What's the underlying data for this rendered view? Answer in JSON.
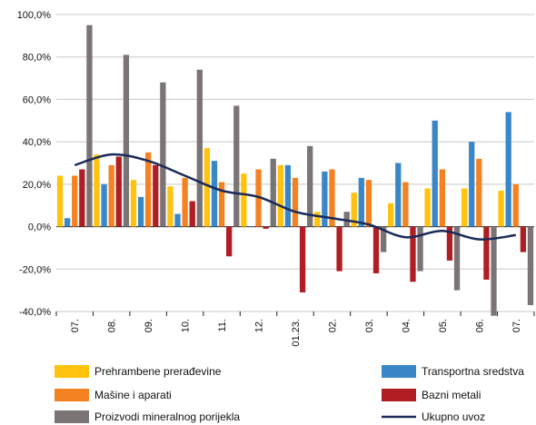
{
  "chart_data": {
    "type": "bar",
    "categories": [
      "07.",
      "08.",
      "09.",
      "10.",
      "11.",
      "12.",
      "01.23.",
      "02.",
      "03.",
      "04.",
      "05.",
      "06.",
      "07."
    ],
    "y_ticks": [
      "100,0%",
      "80,0%",
      "60,0%",
      "40,0%",
      "20,0%",
      "0,0%",
      "-20,0%",
      "-40,0%"
    ],
    "ylim": [
      -40,
      100
    ],
    "grid": "horizontal",
    "legend_position": "bottom",
    "series": [
      {
        "name": "Prehrambene prerađevine",
        "type": "bar",
        "color": "#FFC20E",
        "values": [
          24,
          34,
          22,
          19,
          37,
          25,
          29,
          7,
          16,
          11,
          18,
          18,
          17
        ]
      },
      {
        "name": "Transportna sredstva",
        "type": "bar",
        "color": "#3A87C8",
        "values": [
          4,
          20,
          14,
          6,
          31,
          0,
          29,
          26,
          23,
          30,
          50,
          40,
          54
        ]
      },
      {
        "name": "Mašine i aparati",
        "type": "bar",
        "color": "#F58220",
        "values": [
          24,
          29,
          35,
          23,
          21,
          27,
          23,
          27,
          22,
          21,
          27,
          32,
          20
        ]
      },
      {
        "name": "Bazni metali",
        "type": "bar",
        "color": "#B01E23",
        "values": [
          27,
          33,
          29,
          12,
          -14,
          -1,
          -31,
          -21,
          -22,
          -26,
          -16,
          -25,
          -12
        ]
      },
      {
        "name": "Proizvodi mineralnog porijekla",
        "type": "bar",
        "color": "#7A7574",
        "values": [
          95,
          81,
          68,
          74,
          57,
          32,
          38,
          7,
          -12,
          -21,
          -30,
          -42,
          -37
        ]
      },
      {
        "name": "Ukupno uvoz",
        "type": "line",
        "color": "#1B2A59",
        "values": [
          29,
          34,
          31,
          24,
          17,
          14,
          7,
          4,
          1,
          -5,
          -2,
          -6,
          -4
        ]
      }
    ]
  }
}
